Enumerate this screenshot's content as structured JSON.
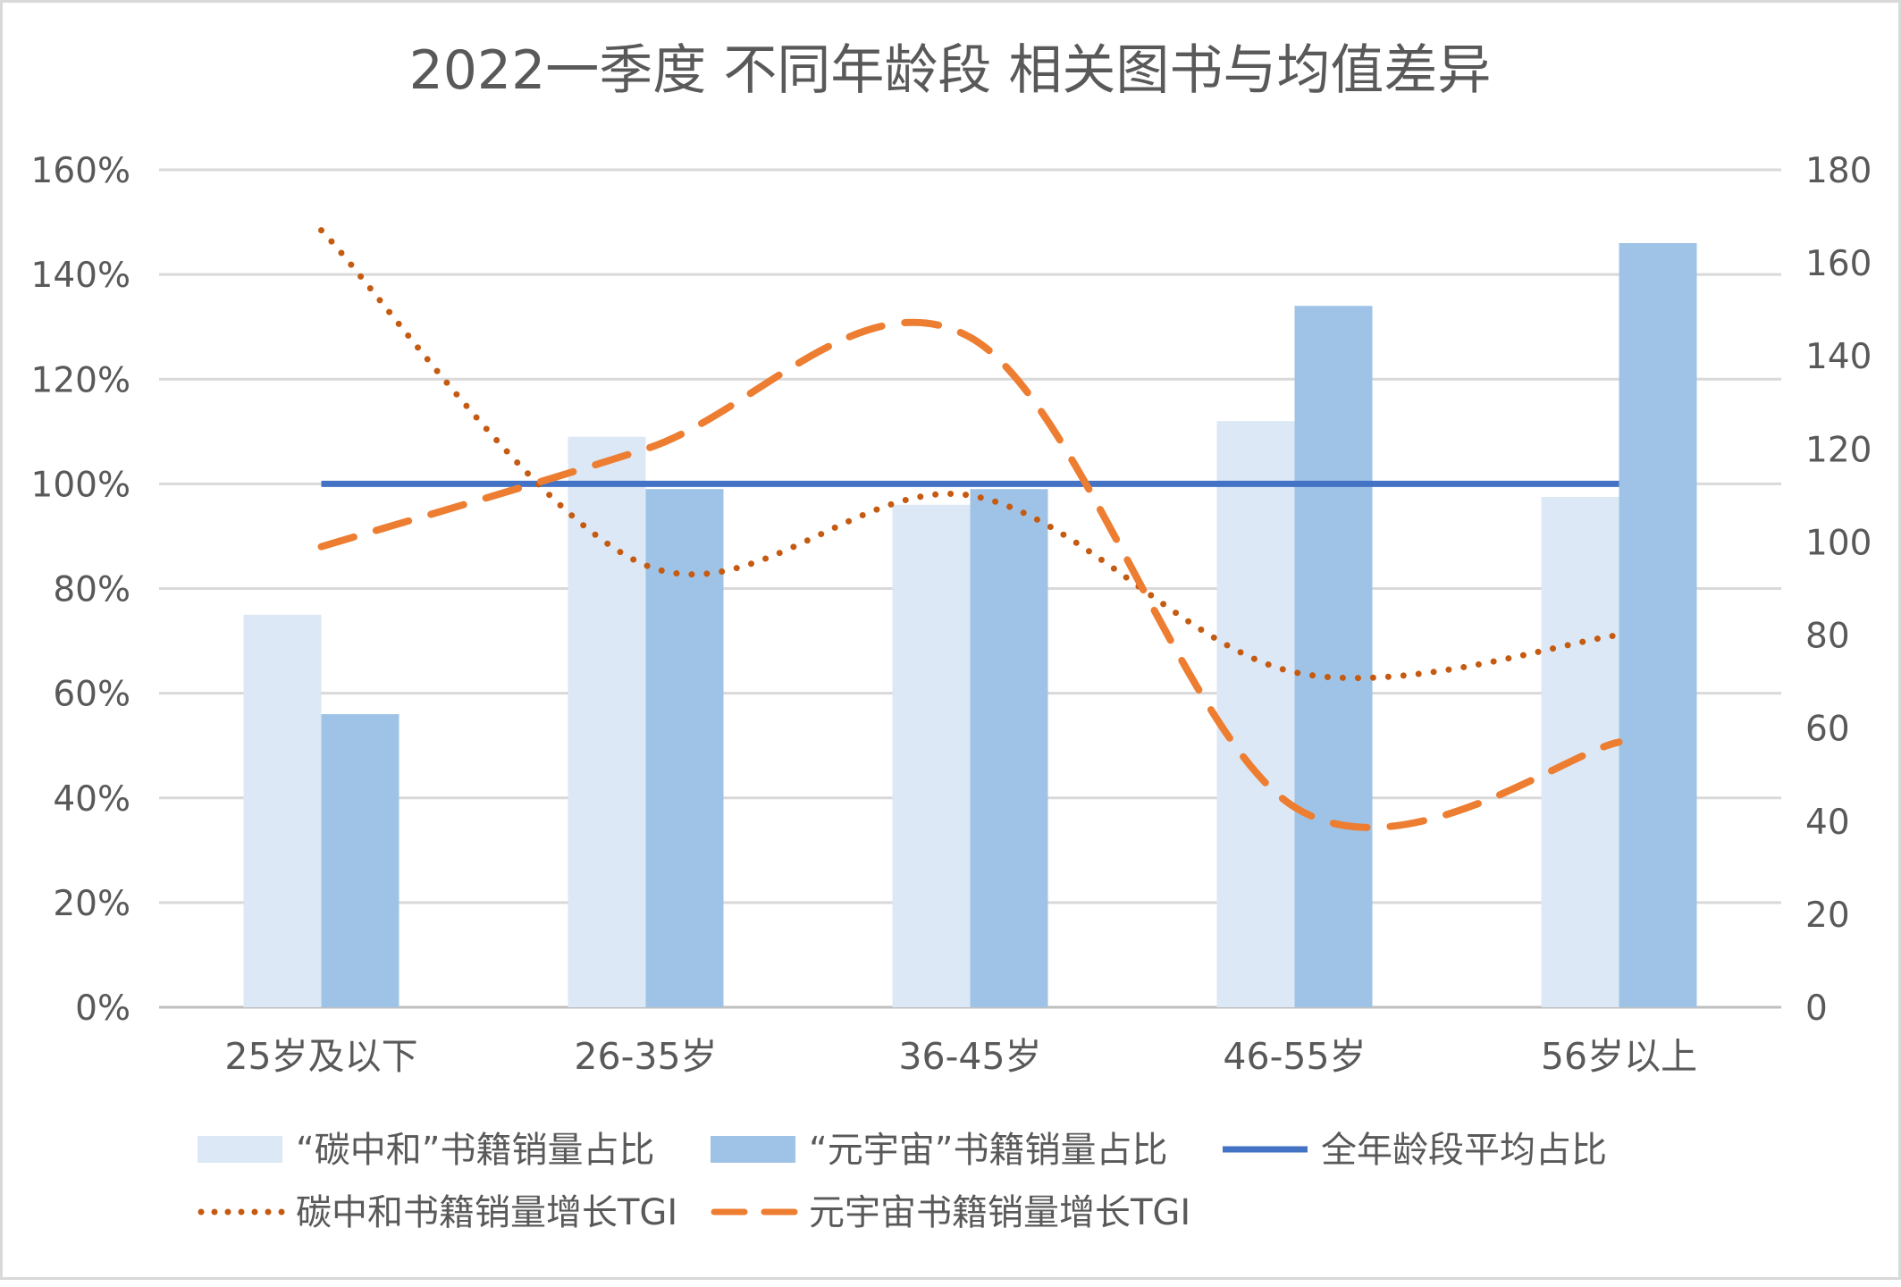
{
  "chart_data": {
    "type": "bar",
    "title": "2022一季度 不同年龄段 相关图书与均值差异",
    "categories": [
      "25岁及以下",
      "26-35岁",
      "36-45岁",
      "46-55岁",
      "56岁以上"
    ],
    "y_left": {
      "ticks": [
        "0%",
        "20%",
        "40%",
        "60%",
        "80%",
        "100%",
        "120%",
        "140%",
        "160%"
      ],
      "range": [
        0,
        1.6
      ]
    },
    "y_right": {
      "ticks": [
        "0",
        "20",
        "40",
        "60",
        "80",
        "100",
        "120",
        "140",
        "160",
        "180"
      ],
      "range": [
        0,
        180
      ]
    },
    "grid": true,
    "legend_position": "bottom",
    "series": [
      {
        "name": "“碳中和”书籍销量占比",
        "kind": "bar",
        "axis": "left",
        "color": "#dce8f5",
        "values": [
          0.75,
          1.09,
          0.96,
          1.12,
          0.975
        ]
      },
      {
        "name": "“元宇宙”书籍销量占比",
        "kind": "bar",
        "axis": "left",
        "color": "#9fc3e6",
        "values": [
          0.56,
          0.99,
          0.99,
          1.34,
          1.46
        ]
      },
      {
        "name": "全年龄段平均占比",
        "kind": "line",
        "style": "solid",
        "axis": "left",
        "color": "#4472c4",
        "values": [
          1.0,
          1.0,
          1.0,
          1.0,
          1.0
        ]
      },
      {
        "name": "碳中和书籍销量增长TGI",
        "kind": "line",
        "style": "dotted",
        "axis": "right",
        "color": "#c55a11",
        "values": [
          167,
          95,
          110,
          72,
          80
        ]
      },
      {
        "name": "元宇宙书籍销量增长TGI",
        "kind": "line",
        "style": "dashed",
        "axis": "right",
        "color": "#ed7d31",
        "values": [
          99,
          120,
          144,
          43,
          57
        ]
      }
    ]
  }
}
